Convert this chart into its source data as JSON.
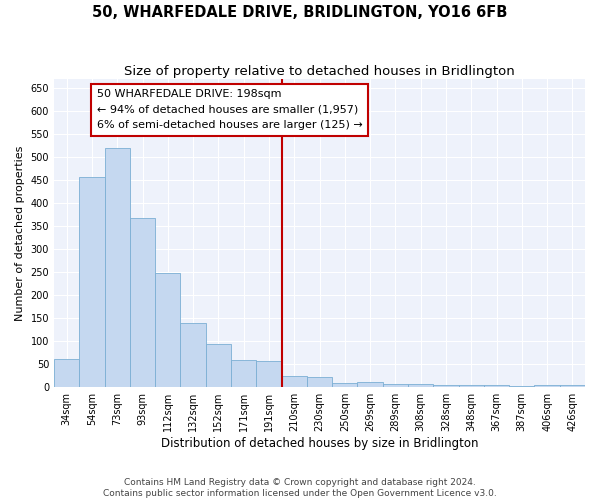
{
  "title": "50, WHARFEDALE DRIVE, BRIDLINGTON, YO16 6FB",
  "subtitle": "Size of property relative to detached houses in Bridlington",
  "xlabel": "Distribution of detached houses by size in Bridlington",
  "ylabel": "Number of detached properties",
  "categories": [
    "34sqm",
    "54sqm",
    "73sqm",
    "93sqm",
    "112sqm",
    "132sqm",
    "152sqm",
    "171sqm",
    "191sqm",
    "210sqm",
    "230sqm",
    "250sqm",
    "269sqm",
    "289sqm",
    "308sqm",
    "328sqm",
    "348sqm",
    "367sqm",
    "387sqm",
    "406sqm",
    "426sqm"
  ],
  "values": [
    62,
    457,
    521,
    369,
    248,
    140,
    95,
    60,
    56,
    25,
    22,
    10,
    12,
    7,
    6,
    5,
    4,
    4,
    3,
    5,
    4
  ],
  "bar_color": "#c5d8f0",
  "bar_edge_color": "#7bafd4",
  "background_color": "#eef2fb",
  "vline_x_index": 8.5,
  "vline_color": "#c00000",
  "annotation_line1": "50 WHARFEDALE DRIVE: 198sqm",
  "annotation_line2": "← 94% of detached houses are smaller (1,957)",
  "annotation_line3": "6% of semi-detached houses are larger (125) →",
  "annotation_box_color": "#ffffff",
  "annotation_box_edge": "#c00000",
  "ylim": [
    0,
    670
  ],
  "yticks": [
    0,
    50,
    100,
    150,
    200,
    250,
    300,
    350,
    400,
    450,
    500,
    550,
    600,
    650
  ],
  "footer": "Contains HM Land Registry data © Crown copyright and database right 2024.\nContains public sector information licensed under the Open Government Licence v3.0.",
  "title_fontsize": 10.5,
  "subtitle_fontsize": 9.5,
  "xlabel_fontsize": 8.5,
  "ylabel_fontsize": 8,
  "tick_fontsize": 7,
  "annotation_fontsize": 8,
  "footer_fontsize": 6.5
}
